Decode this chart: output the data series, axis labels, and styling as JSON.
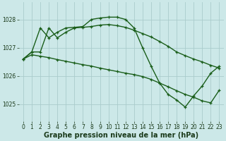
{
  "bg_color": "#cce8e8",
  "grid_color": "#aacccc",
  "line_color": "#1a5e1a",
  "marker_color": "#1a5e1a",
  "xlabel": "Graphe pression niveau de la mer (hPa)",
  "xlim": [
    -0.5,
    23.5
  ],
  "ylim": [
    1024.4,
    1028.6
  ],
  "yticks": [
    1025,
    1026,
    1027,
    1028
  ],
  "xticks": [
    0,
    1,
    2,
    3,
    4,
    5,
    6,
    7,
    8,
    9,
    10,
    11,
    12,
    13,
    14,
    15,
    16,
    17,
    18,
    19,
    20,
    21,
    22,
    23
  ],
  "series": [
    {
      "x": [
        0,
        1,
        2,
        3,
        4,
        5,
        6,
        7,
        8,
        9,
        10,
        11,
        12,
        13,
        14,
        15,
        16,
        17,
        18,
        19,
        20,
        21,
        22,
        23
      ],
      "y": [
        1026.6,
        1026.85,
        1026.85,
        1027.7,
        1027.35,
        1027.55,
        1027.7,
        1027.72,
        1027.75,
        1027.8,
        1027.82,
        1027.78,
        1027.72,
        1027.62,
        1027.5,
        1027.38,
        1027.22,
        1027.05,
        1026.85,
        1026.72,
        1026.6,
        1026.5,
        1026.38,
        1026.28
      ]
    },
    {
      "x": [
        0,
        1,
        2,
        3,
        4,
        5,
        6,
        7,
        8,
        9,
        10,
        11,
        12,
        13,
        14,
        15,
        16,
        17,
        18,
        19,
        20,
        21,
        22,
        23
      ],
      "y": [
        1026.6,
        1026.85,
        1027.7,
        1027.35,
        1027.55,
        1027.7,
        1027.72,
        1027.75,
        1028.0,
        1028.05,
        1028.08,
        1028.08,
        1028.0,
        1027.7,
        1027.0,
        1026.35,
        1025.75,
        1025.35,
        1025.15,
        1024.9,
        1025.3,
        1025.65,
        1026.1,
        1026.35
      ]
    },
    {
      "x": [
        0,
        1,
        2,
        3,
        4,
        5,
        6,
        7,
        8,
        9,
        10,
        11,
        12,
        13,
        14,
        15,
        16,
        17,
        18,
        19,
        20,
        21,
        22,
        23
      ],
      "y": [
        1026.6,
        1026.75,
        1026.7,
        1026.65,
        1026.58,
        1026.52,
        1026.46,
        1026.4,
        1026.35,
        1026.28,
        1026.22,
        1026.16,
        1026.1,
        1026.05,
        1025.98,
        1025.88,
        1025.75,
        1025.62,
        1025.48,
        1025.35,
        1025.25,
        1025.12,
        1025.05,
        1025.5
      ]
    }
  ],
  "linewidth": 1.0,
  "markersize": 3.5,
  "tick_fontsize": 5.5,
  "xlabel_fontsize": 7.0
}
